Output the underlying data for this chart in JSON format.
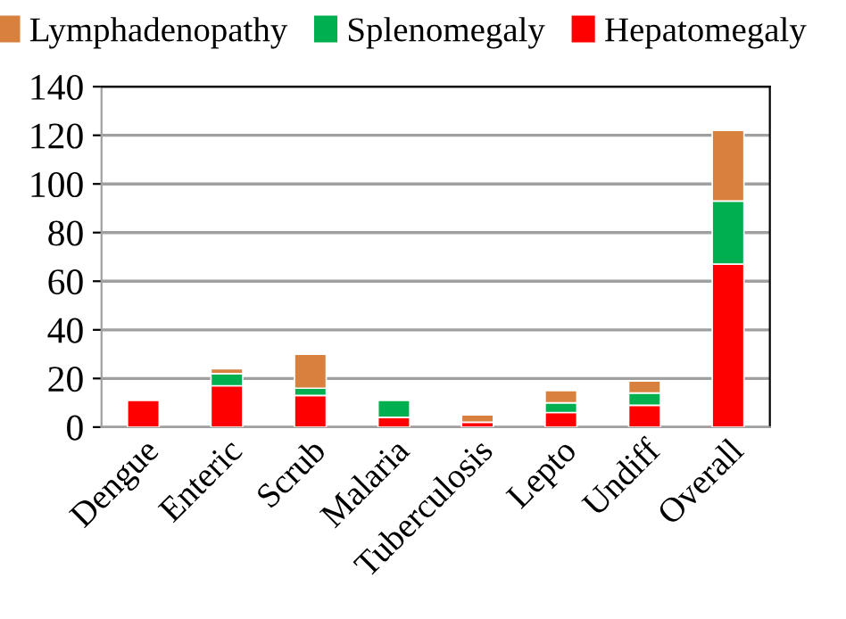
{
  "chart_data": {
    "type": "bar",
    "stacked": true,
    "categories": [
      "Dengue",
      "Enteric",
      "Scrub",
      "Malaria",
      "Tuberculosis",
      "Lepto",
      "Undiff",
      "Overall"
    ],
    "series": [
      {
        "name": "Hepatomegaly",
        "color": "#ff0000",
        "values": [
          11,
          17,
          13,
          4,
          2,
          6,
          9,
          67
        ]
      },
      {
        "name": "Splenomegaly",
        "color": "#00b050",
        "values": [
          null,
          5,
          3,
          7,
          null,
          4,
          5,
          26
        ]
      },
      {
        "name": "Lymphadenopathy",
        "color": "#d8813f",
        "values": [
          null,
          2,
          14,
          null,
          3,
          5,
          5,
          29
        ]
      }
    ],
    "ylim": [
      0,
      140
    ],
    "yticks": [
      0,
      20,
      40,
      60,
      80,
      100,
      120,
      140
    ],
    "grid": "y",
    "legend": "top"
  }
}
